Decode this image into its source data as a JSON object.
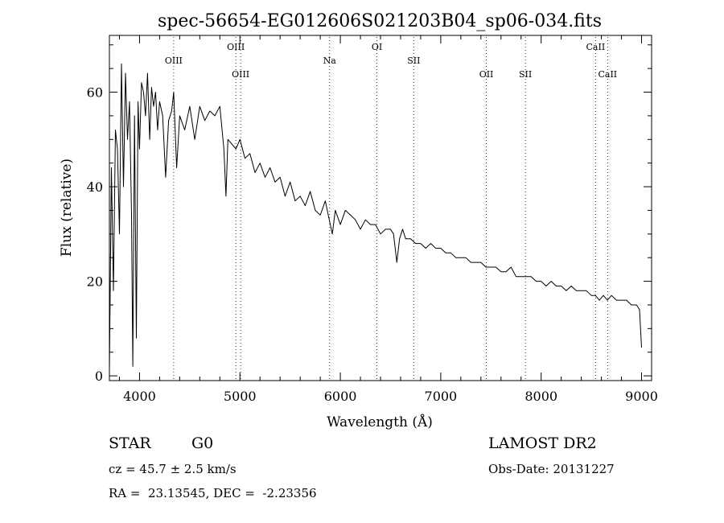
{
  "chart_data": {
    "type": "line",
    "title": "spec-56654-EG012606S021203B04_sp06-034.fits",
    "xlabel": "Wavelength (Å)",
    "ylabel": "Flux (relative)",
    "xlim": [
      3700,
      9100
    ],
    "ylim": [
      -1,
      72
    ],
    "xticks": [
      4000,
      5000,
      6000,
      7000,
      8000,
      9000
    ],
    "xtick_labels": [
      "4000",
      "5000",
      "6000",
      "7000",
      "8000",
      "9000"
    ],
    "yticks": [
      0,
      20,
      40,
      60
    ],
    "ytick_labels": [
      "0",
      "20",
      "40",
      "60"
    ],
    "grid": false,
    "line_color": "#000000",
    "series": [
      {
        "x": [
          3700,
          3720,
          3740,
          3760,
          3780,
          3800,
          3820,
          3840,
          3860,
          3880,
          3900,
          3920,
          3933,
          3950,
          3968,
          3985,
          4000,
          4020,
          4040,
          4060,
          4080,
          4101,
          4120,
          4140,
          4160,
          4180,
          4200,
          4230,
          4260,
          4290,
          4320,
          4340,
          4370,
          4400,
          4450,
          4500,
          4550,
          4600,
          4650,
          4700,
          4750,
          4800,
          4840,
          4861,
          4880,
          4920,
          4960,
          5000,
          5050,
          5100,
          5150,
          5200,
          5250,
          5300,
          5350,
          5400,
          5450,
          5500,
          5550,
          5600,
          5650,
          5700,
          5750,
          5800,
          5850,
          5890,
          5920,
          5950,
          6000,
          6050,
          6100,
          6150,
          6200,
          6250,
          6300,
          6350,
          6400,
          6450,
          6500,
          6530,
          6563,
          6590,
          6620,
          6650,
          6700,
          6750,
          6800,
          6850,
          6900,
          6950,
          7000,
          7050,
          7100,
          7150,
          7200,
          7250,
          7300,
          7350,
          7400,
          7450,
          7500,
          7550,
          7600,
          7650,
          7700,
          7750,
          7800,
          7850,
          7900,
          7950,
          8000,
          8050,
          8100,
          8150,
          8200,
          8250,
          8300,
          8350,
          8400,
          8450,
          8500,
          8540,
          8580,
          8620,
          8660,
          8700,
          8750,
          8800,
          8850,
          8900,
          8950,
          8980,
          9000
        ],
        "y": [
          1,
          44,
          18,
          52,
          48,
          30,
          66,
          40,
          64,
          50,
          58,
          34,
          2,
          55,
          8,
          58,
          48,
          62,
          60,
          55,
          64,
          50,
          61,
          57,
          60,
          52,
          58,
          55,
          42,
          54,
          56,
          60,
          44,
          55,
          52,
          57,
          50,
          57,
          54,
          56,
          55,
          57,
          48,
          38,
          50,
          49,
          48,
          50,
          46,
          47,
          43,
          45,
          42,
          44,
          41,
          42,
          38,
          41,
          37,
          38,
          36,
          39,
          35,
          34,
          37,
          33,
          30,
          35,
          32,
          35,
          34,
          33,
          31,
          33,
          32,
          32,
          30,
          31,
          31,
          30,
          24,
          29,
          31,
          29,
          29,
          28,
          28,
          27,
          28,
          27,
          27,
          26,
          26,
          25,
          25,
          25,
          24,
          24,
          24,
          23,
          23,
          23,
          22,
          22,
          23,
          21,
          21,
          21,
          21,
          20,
          20,
          19,
          20,
          19,
          19,
          18,
          19,
          18,
          18,
          18,
          17,
          17,
          16,
          17,
          16,
          17,
          16,
          16,
          16,
          15,
          15,
          14,
          6
        ]
      }
    ],
    "line_labels": [
      {
        "wavelength": 4340,
        "text": "OIII",
        "row": 2
      },
      {
        "wavelength": 4959,
        "text": "OIII",
        "row": 1
      },
      {
        "wavelength": 5007,
        "text": "OIII",
        "row": 3
      },
      {
        "wavelength": 5893,
        "text": "Na",
        "row": 2
      },
      {
        "wavelength": 6364,
        "text": "OI",
        "row": 1
      },
      {
        "wavelength": 6731,
        "text": "SII",
        "row": 2
      },
      {
        "wavelength": 7454,
        "text": "OII",
        "row": 3
      },
      {
        "wavelength": 7843,
        "text": "SII",
        "row": 3
      },
      {
        "wavelength": 8542,
        "text": "CaII",
        "row": 1
      },
      {
        "wavelength": 8662,
        "text": "CaII",
        "row": 3
      }
    ]
  },
  "info": {
    "object_class": "STAR",
    "subclass": "G0",
    "redshift_line": "cz = 45.7 ± 2.5 km/s",
    "coords_line": "RA =  23.13545, DEC =  -2.23356",
    "survey": "LAMOST DR2",
    "obs_date_line": "Obs-Date: 20131227"
  }
}
